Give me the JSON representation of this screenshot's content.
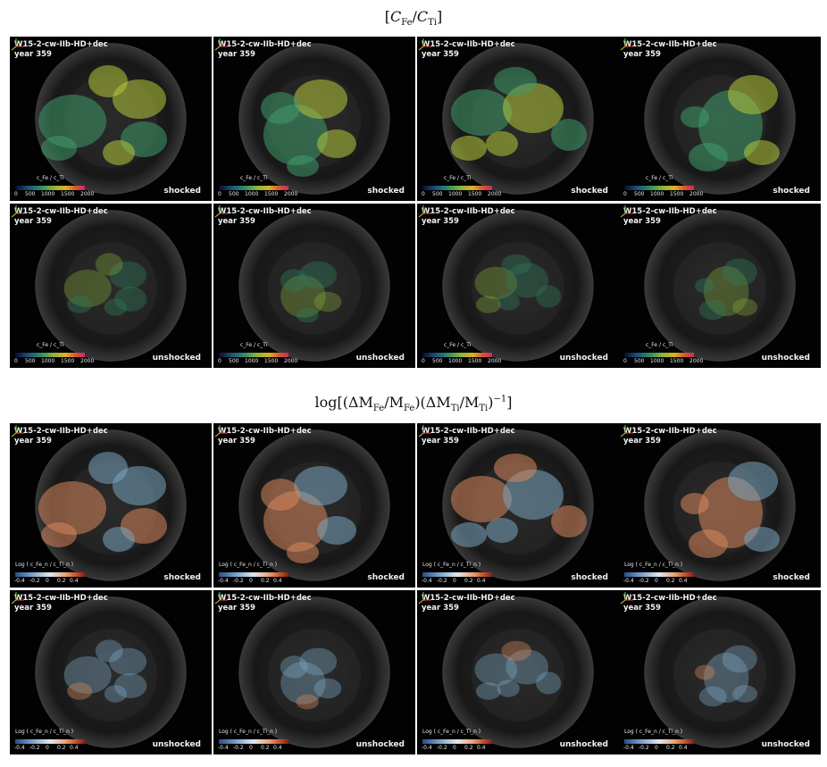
{
  "sections": [
    {
      "title": {
        "open": "[",
        "var1": "C",
        "sub1": "Fe",
        "slash": "/",
        "var2": "C",
        "sub2": "Ti",
        "close": "]"
      },
      "colorbar_title": "c_Fe / c_Ti",
      "ticks": [
        "0",
        "500",
        "1000",
        "1500",
        "2000"
      ],
      "colormap": "fe"
    },
    {
      "title": {
        "prefix": "log[(ΔM",
        "sub1": "Fe",
        "m1": "/M",
        "sub2": "Fe",
        "m2": ")(ΔM",
        "sub3": "Ti",
        "m3": "/M",
        "sub4": "Ti",
        "m4": ")",
        "sup": "−1",
        "close": "]"
      },
      "colorbar_title": "Log ( c_Fe_n / c_Ti_n )",
      "ticks": [
        "-0.4",
        "-0.2",
        "0",
        "0.2",
        "0.4"
      ],
      "colormap": "log"
    }
  ],
  "panel_common": {
    "simulation": "W15-2-cw-IIb-HD+dec",
    "year": "year 359"
  },
  "rows": [
    {
      "section": 0,
      "state": "shocked"
    },
    {
      "section": 0,
      "state": "unshocked"
    },
    {
      "section": 1,
      "state": "shocked"
    },
    {
      "section": 1,
      "state": "unshocked"
    }
  ],
  "colors": {
    "background": "#020202",
    "fe_shocked": "#3f9b6b",
    "fe_highlight": "#b7c83a",
    "log_blue": "#7aa5c0",
    "log_orange": "#d7865c",
    "shell": "#3a3a3a"
  }
}
